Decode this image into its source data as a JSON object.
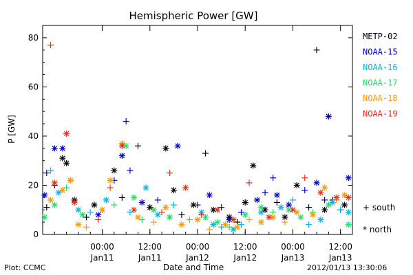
{
  "chart_data": {
    "type": "scatter",
    "title": "Hemispheric Power [GW]",
    "xlabel": "Date and Time",
    "ylabel": "P [GW]",
    "ylim": [
      0,
      85
    ],
    "xlim": [
      "2012-01-10 09:00",
      "2012-01-13 15:00"
    ],
    "y_ticks": [
      0,
      20,
      40,
      60,
      80
    ],
    "x_ticks": [
      {
        "time": "00:00",
        "date": "Jan11"
      },
      {
        "time": "12:00",
        "date": "Jan11"
      },
      {
        "time": "00:00",
        "date": "Jan12"
      },
      {
        "time": "12:00",
        "date": "Jan12"
      },
      {
        "time": "00:00",
        "date": "Jan13"
      },
      {
        "time": "12:00",
        "date": "Jan13"
      }
    ],
    "legend_position": "right",
    "marker_legend": [
      {
        "symbol": "+",
        "label": "south"
      },
      {
        "symbol": "*",
        "label": "north"
      }
    ],
    "series": [
      {
        "name": "METP-02",
        "color": "#000000",
        "points": [
          [
            "2012-01-10 10:00",
            11,
            "+"
          ],
          [
            "2012-01-10 12:00",
            20,
            "+"
          ],
          [
            "2012-01-10 14:00",
            31,
            "*"
          ],
          [
            "2012-01-10 15:00",
            29,
            "*"
          ],
          [
            "2012-01-10 17:00",
            14,
            "*"
          ],
          [
            "2012-01-10 20:00",
            7,
            "+"
          ],
          [
            "2012-01-10 22:00",
            12,
            "*"
          ],
          [
            "2012-01-11 03:00",
            26,
            "*"
          ],
          [
            "2012-01-11 05:00",
            15,
            "+"
          ],
          [
            "2012-01-11 09:00",
            36,
            "+"
          ],
          [
            "2012-01-11 12:00",
            11,
            "*"
          ],
          [
            "2012-01-11 16:00",
            35,
            "*"
          ],
          [
            "2012-01-11 18:00",
            18,
            "*"
          ],
          [
            "2012-01-11 20:00",
            8,
            "+"
          ],
          [
            "2012-01-11 23:00",
            12,
            "*"
          ],
          [
            "2012-01-12 02:00",
            33,
            "+"
          ],
          [
            "2012-01-12 04:00",
            10,
            "*"
          ],
          [
            "2012-01-12 08:00",
            7,
            "*"
          ],
          [
            "2012-01-12 10:00",
            5,
            "+"
          ],
          [
            "2012-01-12 12:00",
            13,
            "*"
          ],
          [
            "2012-01-12 14:00",
            28,
            "*"
          ],
          [
            "2012-01-12 17:00",
            10,
            "*"
          ],
          [
            "2012-01-12 20:00",
            13,
            "+"
          ],
          [
            "2012-01-12 22:00",
            7,
            "*"
          ],
          [
            "2012-01-13 01:00",
            20,
            "*"
          ],
          [
            "2012-01-13 04:00",
            11,
            "+"
          ],
          [
            "2012-01-13 06:00",
            75,
            "+"
          ],
          [
            "2012-01-13 08:00",
            10,
            "*"
          ],
          [
            "2012-01-13 10:00",
            14,
            "+"
          ],
          [
            "2012-01-13 13:00",
            12,
            "*"
          ]
        ]
      },
      {
        "name": "NOAA-15",
        "color": "#0000cc",
        "points": [
          [
            "2012-01-10 09:30",
            16,
            "*"
          ],
          [
            "2012-01-10 10:00",
            25,
            "+"
          ],
          [
            "2012-01-10 12:00",
            35,
            "*"
          ],
          [
            "2012-01-10 14:00",
            35,
            "*"
          ],
          [
            "2012-01-10 16:00",
            22,
            "+"
          ],
          [
            "2012-01-10 23:00",
            8,
            "*"
          ],
          [
            "2012-01-11 03:00",
            22,
            "+"
          ],
          [
            "2012-01-11 05:00",
            32,
            "*"
          ],
          [
            "2012-01-11 06:00",
            46,
            "+"
          ],
          [
            "2012-01-11 07:00",
            26,
            "+"
          ],
          [
            "2012-01-11 10:00",
            13,
            "*"
          ],
          [
            "2012-01-11 14:00",
            14,
            "+"
          ],
          [
            "2012-01-11 19:00",
            36,
            "*"
          ],
          [
            "2012-01-12 00:00",
            12,
            "+"
          ],
          [
            "2012-01-12 03:00",
            16,
            "*"
          ],
          [
            "2012-01-12 06:00",
            11,
            "+"
          ],
          [
            "2012-01-12 08:00",
            6,
            "*"
          ],
          [
            "2012-01-12 11:00",
            9,
            "+"
          ],
          [
            "2012-01-12 15:00",
            14,
            "*"
          ],
          [
            "2012-01-12 17:00",
            17,
            "+"
          ],
          [
            "2012-01-12 19:00",
            23,
            "+"
          ],
          [
            "2012-01-12 20:00",
            16,
            "*"
          ],
          [
            "2012-01-12 23:00",
            12,
            "*"
          ],
          [
            "2012-01-13 03:00",
            18,
            "+"
          ],
          [
            "2012-01-13 06:00",
            21,
            "*"
          ],
          [
            "2012-01-13 08:00",
            14,
            "+"
          ],
          [
            "2012-01-13 09:00",
            48,
            "*"
          ],
          [
            "2012-01-13 12:00",
            10,
            "+"
          ],
          [
            "2012-01-13 14:00",
            23,
            "*"
          ]
        ]
      },
      {
        "name": "NOAA-16",
        "color": "#00b4e6",
        "points": [
          [
            "2012-01-10 11:00",
            26,
            "+"
          ],
          [
            "2012-01-10 13:00",
            17,
            "*"
          ],
          [
            "2012-01-10 18:00",
            10,
            "*"
          ],
          [
            "2012-01-10 21:00",
            9,
            "+"
          ],
          [
            "2012-01-11 01:00",
            14,
            "*"
          ],
          [
            "2012-01-11 07:00",
            9,
            "+"
          ],
          [
            "2012-01-11 11:00",
            19,
            "*"
          ],
          [
            "2012-01-11 14:00",
            8,
            "*"
          ],
          [
            "2012-01-11 18:00",
            12,
            "+"
          ],
          [
            "2012-01-12 01:00",
            9,
            "*"
          ],
          [
            "2012-01-12 04:00",
            4,
            "*"
          ],
          [
            "2012-01-12 06:00",
            3,
            "+"
          ],
          [
            "2012-01-12 09:00",
            2,
            "*"
          ],
          [
            "2012-01-12 11:00",
            4,
            "+"
          ],
          [
            "2012-01-12 16:00",
            9,
            "*"
          ],
          [
            "2012-01-12 21:00",
            11,
            "*"
          ],
          [
            "2012-01-13 00:00",
            14,
            "+"
          ],
          [
            "2012-01-13 04:00",
            4,
            "+"
          ],
          [
            "2012-01-13 07:00",
            6,
            "*"
          ],
          [
            "2012-01-13 10:00",
            13,
            "*"
          ],
          [
            "2012-01-13 12:00",
            10,
            "+"
          ],
          [
            "2012-01-13 14:00",
            9,
            "*"
          ]
        ]
      },
      {
        "name": "NOAA-17",
        "color": "#22dd66",
        "points": [
          [
            "2012-01-10 09:30",
            7,
            "*"
          ],
          [
            "2012-01-10 12:00",
            12,
            "*"
          ],
          [
            "2012-01-10 15:00",
            19,
            "+"
          ],
          [
            "2012-01-10 19:00",
            8,
            "*"
          ],
          [
            "2012-01-11 00:00",
            10,
            "*"
          ],
          [
            "2012-01-11 03:00",
            12,
            "+"
          ],
          [
            "2012-01-11 06:00",
            36,
            "*"
          ],
          [
            "2012-01-11 08:00",
            15,
            "*"
          ],
          [
            "2012-01-11 10:00",
            6,
            "+"
          ],
          [
            "2012-01-11 13:00",
            10,
            "*"
          ],
          [
            "2012-01-11 17:00",
            7,
            "*"
          ],
          [
            "2012-01-11 22:00",
            6,
            "+"
          ],
          [
            "2012-01-12 02:00",
            7,
            "*"
          ],
          [
            "2012-01-12 05:00",
            5,
            "*"
          ],
          [
            "2012-01-12 08:00",
            3,
            "+"
          ],
          [
            "2012-01-12 12:00",
            8,
            "*"
          ],
          [
            "2012-01-12 16:00",
            11,
            "*"
          ],
          [
            "2012-01-12 19:00",
            9,
            "+"
          ],
          [
            "2012-01-12 23:00",
            10,
            "*"
          ],
          [
            "2012-01-13 02:00",
            7,
            "*"
          ],
          [
            "2012-01-13 05:00",
            9,
            "+"
          ],
          [
            "2012-01-13 09:00",
            12,
            "*"
          ],
          [
            "2012-01-13 14:00",
            4,
            "*"
          ]
        ]
      },
      {
        "name": "NOAA-18",
        "color": "#ff9900",
        "points": [
          [
            "2012-01-10 11:00",
            14,
            "*"
          ],
          [
            "2012-01-10 14:00",
            18,
            "*"
          ],
          [
            "2012-01-10 16:00",
            22,
            "*"
          ],
          [
            "2012-01-10 18:00",
            4,
            "*"
          ],
          [
            "2012-01-10 20:00",
            3,
            "+"
          ],
          [
            "2012-01-11 00:00",
            10,
            "*"
          ],
          [
            "2012-01-11 02:00",
            22,
            "*"
          ],
          [
            "2012-01-11 05:00",
            37,
            "*"
          ],
          [
            "2012-01-11 09:00",
            7,
            "*"
          ],
          [
            "2012-01-11 13:00",
            5,
            "+"
          ],
          [
            "2012-01-11 16:00",
            11,
            "*"
          ],
          [
            "2012-01-11 20:00",
            4,
            "*"
          ],
          [
            "2012-01-12 00:00",
            6,
            "*"
          ],
          [
            "2012-01-12 03:00",
            2,
            "+"
          ],
          [
            "2012-01-12 07:00",
            4,
            "*"
          ],
          [
            "2012-01-12 10:00",
            3,
            "*"
          ],
          [
            "2012-01-12 13:00",
            6,
            "+"
          ],
          [
            "2012-01-12 16:00",
            5,
            "*"
          ],
          [
            "2012-01-12 19:00",
            7,
            "*"
          ],
          [
            "2012-01-12 22:00",
            5,
            "+"
          ],
          [
            "2012-01-13 01:00",
            9,
            "*"
          ],
          [
            "2012-01-13 05:00",
            8,
            "*"
          ],
          [
            "2012-01-13 08:00",
            19,
            "*"
          ],
          [
            "2012-01-13 11:00",
            14,
            "+"
          ],
          [
            "2012-01-13 13:00",
            16,
            "*"
          ]
        ]
      },
      {
        "name": "NOAA-19",
        "color": "#e62e1a",
        "points": [
          [
            "2012-01-10 11:00",
            77,
            "+"
          ],
          [
            "2012-01-10 12:00",
            21,
            "*"
          ],
          [
            "2012-01-10 15:00",
            41,
            "*"
          ],
          [
            "2012-01-10 17:00",
            13,
            "*"
          ],
          [
            "2012-01-10 23:00",
            6,
            "+"
          ],
          [
            "2012-01-11 02:00",
            19,
            "+"
          ],
          [
            "2012-01-11 05:00",
            36,
            "*"
          ],
          [
            "2012-01-11 08:00",
            10,
            "*"
          ],
          [
            "2012-01-11 15:00",
            9,
            "+"
          ],
          [
            "2012-01-11 17:00",
            25,
            "+"
          ],
          [
            "2012-01-11 21:00",
            19,
            "*"
          ],
          [
            "2012-01-12 01:00",
            8,
            "+"
          ],
          [
            "2012-01-12 05:00",
            10,
            "*"
          ],
          [
            "2012-01-12 09:00",
            6,
            "*"
          ],
          [
            "2012-01-12 13:00",
            21,
            "+"
          ],
          [
            "2012-01-12 18:00",
            7,
            "*"
          ],
          [
            "2012-01-13 00:00",
            10,
            "*"
          ],
          [
            "2012-01-13 03:00",
            23,
            "+"
          ],
          [
            "2012-01-13 07:00",
            17,
            "*"
          ],
          [
            "2012-01-13 11:00",
            15,
            "*"
          ],
          [
            "2012-01-13 14:00",
            15,
            "*"
          ]
        ]
      }
    ]
  },
  "footer": {
    "left": "Plot: CCMC",
    "right": "2012/01/13 13:30:06"
  }
}
